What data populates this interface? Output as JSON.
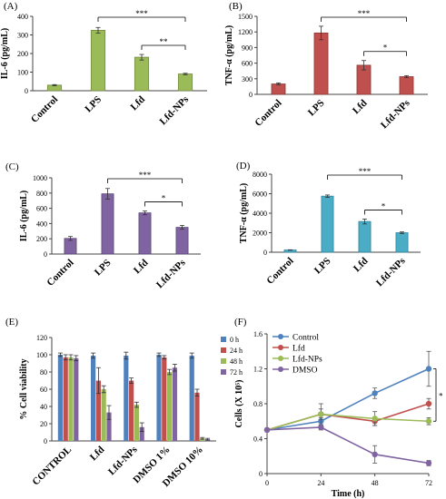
{
  "chart_data": [
    {
      "panel_label": "(A)",
      "type": "bar",
      "ylabel": "IL-6 (pg/mL)",
      "ylim": [
        0,
        400
      ],
      "yticks": [
        0,
        100,
        200,
        300,
        400
      ],
      "categories": [
        "Control",
        "LPS",
        "Lfd",
        "Lfd-NPs"
      ],
      "values": [
        30,
        325,
        180,
        90
      ],
      "errors": [
        3,
        15,
        15,
        4
      ],
      "color": "#9bbb59",
      "edge": "#71893f",
      "significance": [
        {
          "from": 1,
          "to": 3,
          "label": "***"
        },
        {
          "from": 2,
          "to": 3,
          "label": "**"
        }
      ]
    },
    {
      "panel_label": "(B)",
      "type": "bar",
      "ylabel": "TNF-α (pg/mL)",
      "ylim": [
        0,
        1500
      ],
      "yticks": [
        0,
        300,
        600,
        900,
        1200,
        1500
      ],
      "categories": [
        "Control",
        "LPS",
        "Lfd",
        "Lfd-NPs"
      ],
      "values": [
        200,
        1180,
        560,
        340
      ],
      "errors": [
        20,
        130,
        90,
        20
      ],
      "color": "#c0504d",
      "edge": "#8c3836",
      "significance": [
        {
          "from": 1,
          "to": 3,
          "label": "***"
        },
        {
          "from": 2,
          "to": 3,
          "label": "*"
        }
      ]
    },
    {
      "panel_label": "(C)",
      "type": "bar",
      "ylabel": "IL-6 (pg/mL)",
      "ylim": [
        0,
        1000
      ],
      "yticks": [
        0,
        200,
        400,
        600,
        800,
        1000
      ],
      "categories": [
        "Control",
        "LPS",
        "Lfd",
        "Lfd-NPs"
      ],
      "values": [
        205,
        790,
        540,
        350
      ],
      "errors": [
        25,
        70,
        25,
        25
      ],
      "color": "#8064a2",
      "edge": "#5c4876",
      "significance": [
        {
          "from": 1,
          "to": 3,
          "label": "***"
        },
        {
          "from": 2,
          "to": 3,
          "label": "*"
        }
      ]
    },
    {
      "panel_label": "(D)",
      "type": "bar",
      "ylabel": "TNF-α (pg/mL)",
      "ylim": [
        0,
        8000
      ],
      "yticks": [
        0,
        2000,
        4000,
        6000,
        8000
      ],
      "categories": [
        "Control",
        "LPS",
        "Lfd",
        "Lfd-NPs"
      ],
      "values": [
        230,
        5750,
        3150,
        2000
      ],
      "errors": [
        20,
        120,
        250,
        80
      ],
      "color": "#4bacc6",
      "edge": "#31859c",
      "significance": [
        {
          "from": 1,
          "to": 3,
          "label": "***"
        },
        {
          "from": 2,
          "to": 3,
          "label": "*"
        }
      ]
    },
    {
      "panel_label": "(E)",
      "type": "bar",
      "ylabel": "% Cell viability",
      "ylim": [
        0,
        120
      ],
      "yticks": [
        0,
        20,
        40,
        60,
        80,
        100,
        120
      ],
      "categories": [
        "CONTROL",
        "Lfd",
        "Lfd-NPs",
        "DMSO 1%",
        "DMSO 10%"
      ],
      "series": [
        {
          "name": "0 h",
          "color": "#4f81bd",
          "values": [
            100,
            99,
            99,
            100,
            99
          ],
          "errors": [
            2,
            3,
            4,
            2,
            3
          ]
        },
        {
          "name": "24 h",
          "color": "#c0504d",
          "values": [
            97,
            70,
            70,
            97,
            56
          ],
          "errors": [
            3,
            15,
            3,
            2,
            4
          ]
        },
        {
          "name": "48 h",
          "color": "#9bbb59",
          "values": [
            97,
            60,
            42,
            80,
            3
          ],
          "errors": [
            3,
            4,
            3,
            3,
            1
          ]
        },
        {
          "name": "72 h",
          "color": "#8064a2",
          "values": [
            96,
            33,
            16,
            85,
            2
          ],
          "errors": [
            3,
            8,
            5,
            4,
            1
          ]
        }
      ]
    },
    {
      "panel_label": "(F)",
      "type": "line",
      "ylabel": "Cells (X 10⁵)",
      "xlabel": "Time (h)",
      "x": [
        0,
        24,
        48,
        72
      ],
      "xlim": [
        0,
        72
      ],
      "xticks": [
        0,
        24,
        48,
        72
      ],
      "ylim": [
        0,
        1.6
      ],
      "yticks": [
        0,
        0.4,
        0.8,
        1.2,
        1.6
      ],
      "series": [
        {
          "name": "Control",
          "color": "#4f81bd",
          "values": [
            0.5,
            0.6,
            0.92,
            1.2
          ],
          "errors": [
            0,
            0.04,
            0.06,
            0.2
          ]
        },
        {
          "name": "Lfd",
          "color": "#c0504d",
          "values": [
            0.5,
            0.68,
            0.6,
            0.8
          ],
          "errors": [
            0,
            0.06,
            0.05,
            0.06
          ]
        },
        {
          "name": "Lfd-NPs",
          "color": "#9bbb59",
          "values": [
            0.5,
            0.68,
            0.63,
            0.6
          ],
          "errors": [
            0,
            0.12,
            0.08,
            0.04
          ]
        },
        {
          "name": "DMSO",
          "color": "#8064a2",
          "values": [
            0.5,
            0.53,
            0.22,
            0.12
          ],
          "errors": [
            0,
            0.03,
            0.1,
            0.03
          ]
        }
      ],
      "significance": [
        {
          "label": "*",
          "x": 72,
          "from_y": 1.2,
          "to_y": 0.6
        }
      ]
    }
  ]
}
